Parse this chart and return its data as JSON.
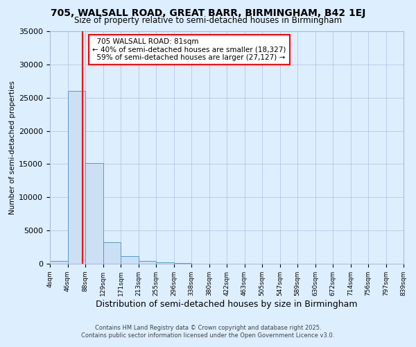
{
  "title": "705, WALSALL ROAD, GREAT BARR, BIRMINGHAM, B42 1EJ",
  "subtitle": "Size of property relative to semi-detached houses in Birmingham",
  "xlabel": "Distribution of semi-detached houses by size in Birmingham",
  "ylabel": "Number of semi-detached properties",
  "bins": [
    "4sqm",
    "46sqm",
    "88sqm",
    "129sqm",
    "171sqm",
    "213sqm",
    "255sqm",
    "296sqm",
    "338sqm",
    "380sqm",
    "422sqm",
    "463sqm",
    "505sqm",
    "547sqm",
    "589sqm",
    "630sqm",
    "672sqm",
    "714sqm",
    "756sqm",
    "797sqm",
    "839sqm"
  ],
  "values": [
    400,
    26000,
    15100,
    3200,
    1100,
    450,
    250,
    100,
    0,
    0,
    0,
    0,
    0,
    0,
    0,
    0,
    0,
    0,
    0,
    0
  ],
  "bar_color": "#cce0f5",
  "bar_edge_color": "#5599cc",
  "property_sqm": 81,
  "pct_smaller": 40,
  "count_smaller": 18327,
  "pct_larger": 59,
  "count_larger": 27127,
  "annotation_label": "705 WALSALL ROAD: 81sqm",
  "ylim": [
    0,
    35000
  ],
  "yticks": [
    0,
    5000,
    10000,
    15000,
    20000,
    25000,
    30000,
    35000
  ],
  "bg_color": "#ddeeff",
  "grid_color": "#aabbdd",
  "footer1": "Contains HM Land Registry data © Crown copyright and database right 2025.",
  "footer2": "Contains public sector information licensed under the Open Government Licence v3.0."
}
